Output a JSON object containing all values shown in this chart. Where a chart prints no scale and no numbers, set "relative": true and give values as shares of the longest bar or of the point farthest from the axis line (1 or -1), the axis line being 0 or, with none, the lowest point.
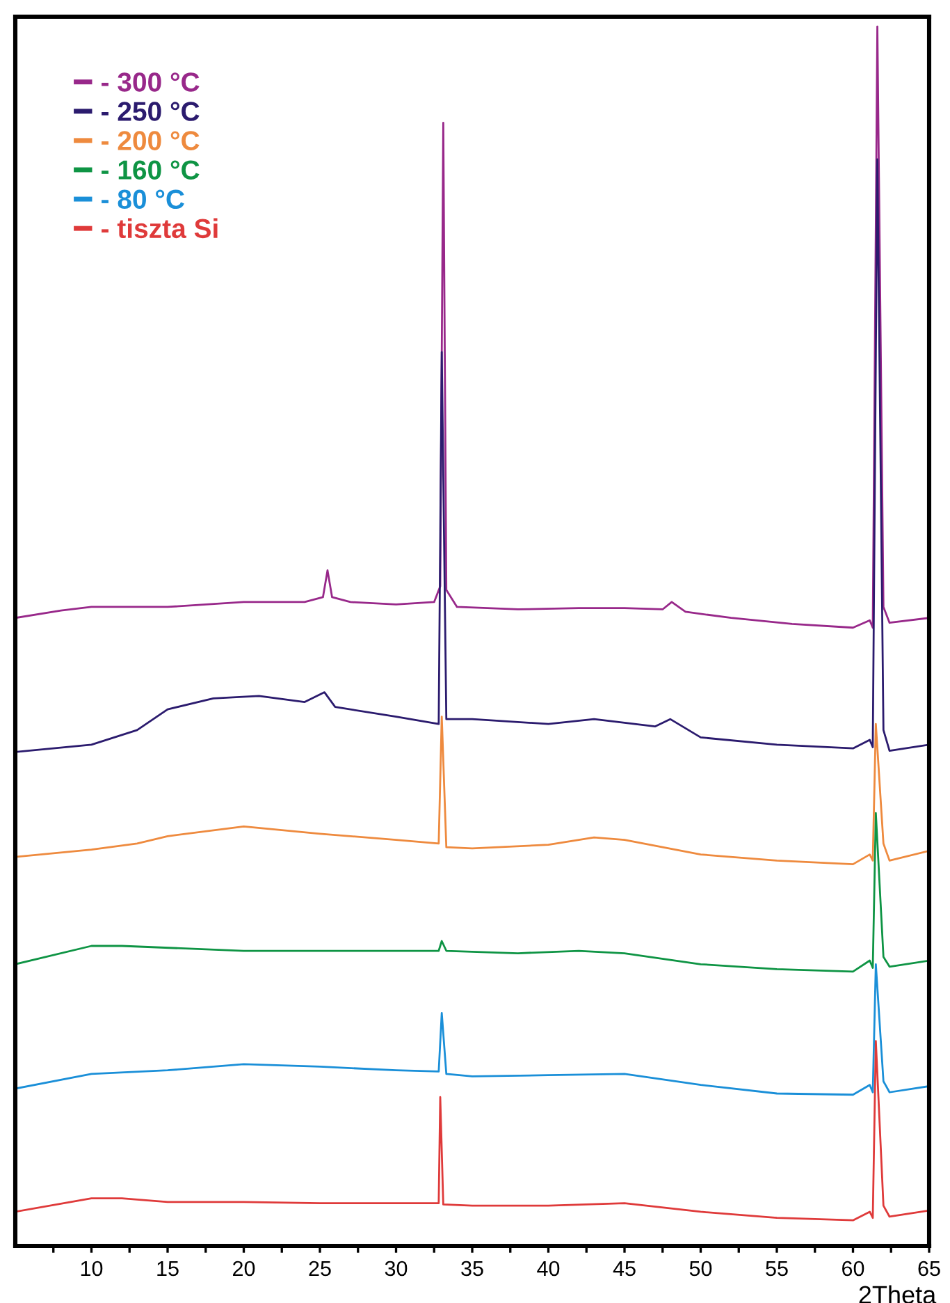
{
  "chart_data": {
    "type": "line",
    "relative": true,
    "xlabel": "2Theta",
    "xlim": [
      5,
      65
    ],
    "xticks": [
      {
        "value": 7.5,
        "label": null
      },
      10,
      {
        "value": 12.5,
        "label": null
      },
      15,
      {
        "value": 17.5,
        "label": null
      },
      20,
      {
        "value": 22.5,
        "label": null
      },
      25,
      {
        "value": 27.5,
        "label": null
      },
      30,
      {
        "value": 32.5,
        "label": null
      },
      35,
      {
        "value": 37.5,
        "label": null
      },
      40,
      {
        "value": 42.5,
        "label": null
      },
      45,
      {
        "value": 47.5,
        "label": null
      },
      50,
      {
        "value": 52.5,
        "label": null
      },
      55,
      {
        "value": 57.5,
        "label": null
      },
      60,
      {
        "value": 62.5,
        "label": null
      },
      65
    ],
    "tick_labels": "x",
    "grid": false,
    "legend": "top left",
    "marker": "none",
    "line_style": "solid",
    "series": [
      {
        "name": "- 300 °C",
        "color": "#98288a",
        "x": [
          5,
          8,
          10,
          15,
          20,
          24,
          25.2,
          25.5,
          25.8,
          27,
          30,
          32.5,
          32.9,
          33.1,
          33.3,
          34,
          38,
          42,
          45,
          47.5,
          48.1,
          49,
          52,
          56,
          60,
          61.1,
          61.3,
          61.6,
          62,
          62.4,
          65
        ],
        "values": [
          0.515,
          0.521,
          0.524,
          0.524,
          0.528,
          0.528,
          0.532,
          0.554,
          0.532,
          0.528,
          0.526,
          0.528,
          0.541,
          0.921,
          0.538,
          0.524,
          0.522,
          0.523,
          0.523,
          0.522,
          0.528,
          0.52,
          0.515,
          0.51,
          0.507,
          0.513,
          0.507,
          1.0,
          0.524,
          0.511,
          0.515
        ]
      },
      {
        "name": "- 250 °C",
        "color": "#2b1b6e",
        "x": [
          5,
          10,
          13,
          15,
          18,
          21,
          24,
          25.3,
          26,
          30,
          32.8,
          33.0,
          33.3,
          35,
          40,
          43,
          47,
          48,
          50,
          55,
          60,
          61.1,
          61.3,
          61.6,
          62,
          62.4,
          65
        ],
        "values": [
          0.405,
          0.411,
          0.423,
          0.44,
          0.449,
          0.451,
          0.446,
          0.454,
          0.442,
          0.434,
          0.428,
          0.733,
          0.432,
          0.432,
          0.428,
          0.432,
          0.426,
          0.432,
          0.417,
          0.411,
          0.408,
          0.415,
          0.409,
          0.891,
          0.423,
          0.406,
          0.411
        ]
      },
      {
        "name": "- 200 °C",
        "color": "#ee8a3e",
        "x": [
          5,
          10,
          13,
          15,
          20,
          25,
          30,
          32.8,
          33.0,
          33.3,
          35,
          40,
          43,
          45,
          50,
          55,
          60,
          61.1,
          61.3,
          61.5,
          62,
          62.4,
          65
        ],
        "values": [
          0.319,
          0.325,
          0.33,
          0.336,
          0.344,
          0.338,
          0.333,
          0.33,
          0.434,
          0.327,
          0.326,
          0.329,
          0.335,
          0.333,
          0.321,
          0.316,
          0.313,
          0.321,
          0.316,
          0.428,
          0.33,
          0.316,
          0.324
        ]
      },
      {
        "name": "- 160 °C",
        "color": "#0e9444",
        "x": [
          5,
          10,
          12,
          20,
          30,
          32.8,
          33.0,
          33.3,
          38,
          42,
          45,
          50,
          55,
          60,
          61.1,
          61.3,
          61.5,
          62,
          62.4,
          65
        ],
        "values": [
          0.231,
          0.246,
          0.246,
          0.242,
          0.242,
          0.242,
          0.25,
          0.242,
          0.24,
          0.242,
          0.24,
          0.231,
          0.227,
          0.225,
          0.234,
          0.228,
          0.355,
          0.237,
          0.229,
          0.234
        ]
      },
      {
        "name": "- 80 °C",
        "color": "#1a8fd8",
        "x": [
          5,
          10,
          15,
          20,
          25,
          30,
          32.8,
          33.0,
          33.3,
          35,
          40,
          45,
          50,
          55,
          60,
          61.1,
          61.3,
          61.5,
          62,
          62.4,
          65
        ],
        "values": [
          0.129,
          0.141,
          0.144,
          0.149,
          0.147,
          0.144,
          0.143,
          0.191,
          0.141,
          0.139,
          0.14,
          0.141,
          0.132,
          0.125,
          0.124,
          0.132,
          0.126,
          0.231,
          0.135,
          0.126,
          0.131
        ]
      },
      {
        "name": "- tiszta Si",
        "color": "#df3a3a",
        "x": [
          5,
          10,
          12,
          15,
          20,
          25,
          30,
          32.8,
          32.9,
          33.1,
          35,
          40,
          45,
          50,
          55,
          60,
          61.1,
          61.3,
          61.5,
          62,
          62.4,
          65
        ],
        "values": [
          0.028,
          0.039,
          0.039,
          0.036,
          0.036,
          0.035,
          0.035,
          0.035,
          0.122,
          0.034,
          0.033,
          0.033,
          0.035,
          0.028,
          0.023,
          0.021,
          0.028,
          0.023,
          0.168,
          0.033,
          0.024,
          0.029
        ]
      }
    ]
  }
}
